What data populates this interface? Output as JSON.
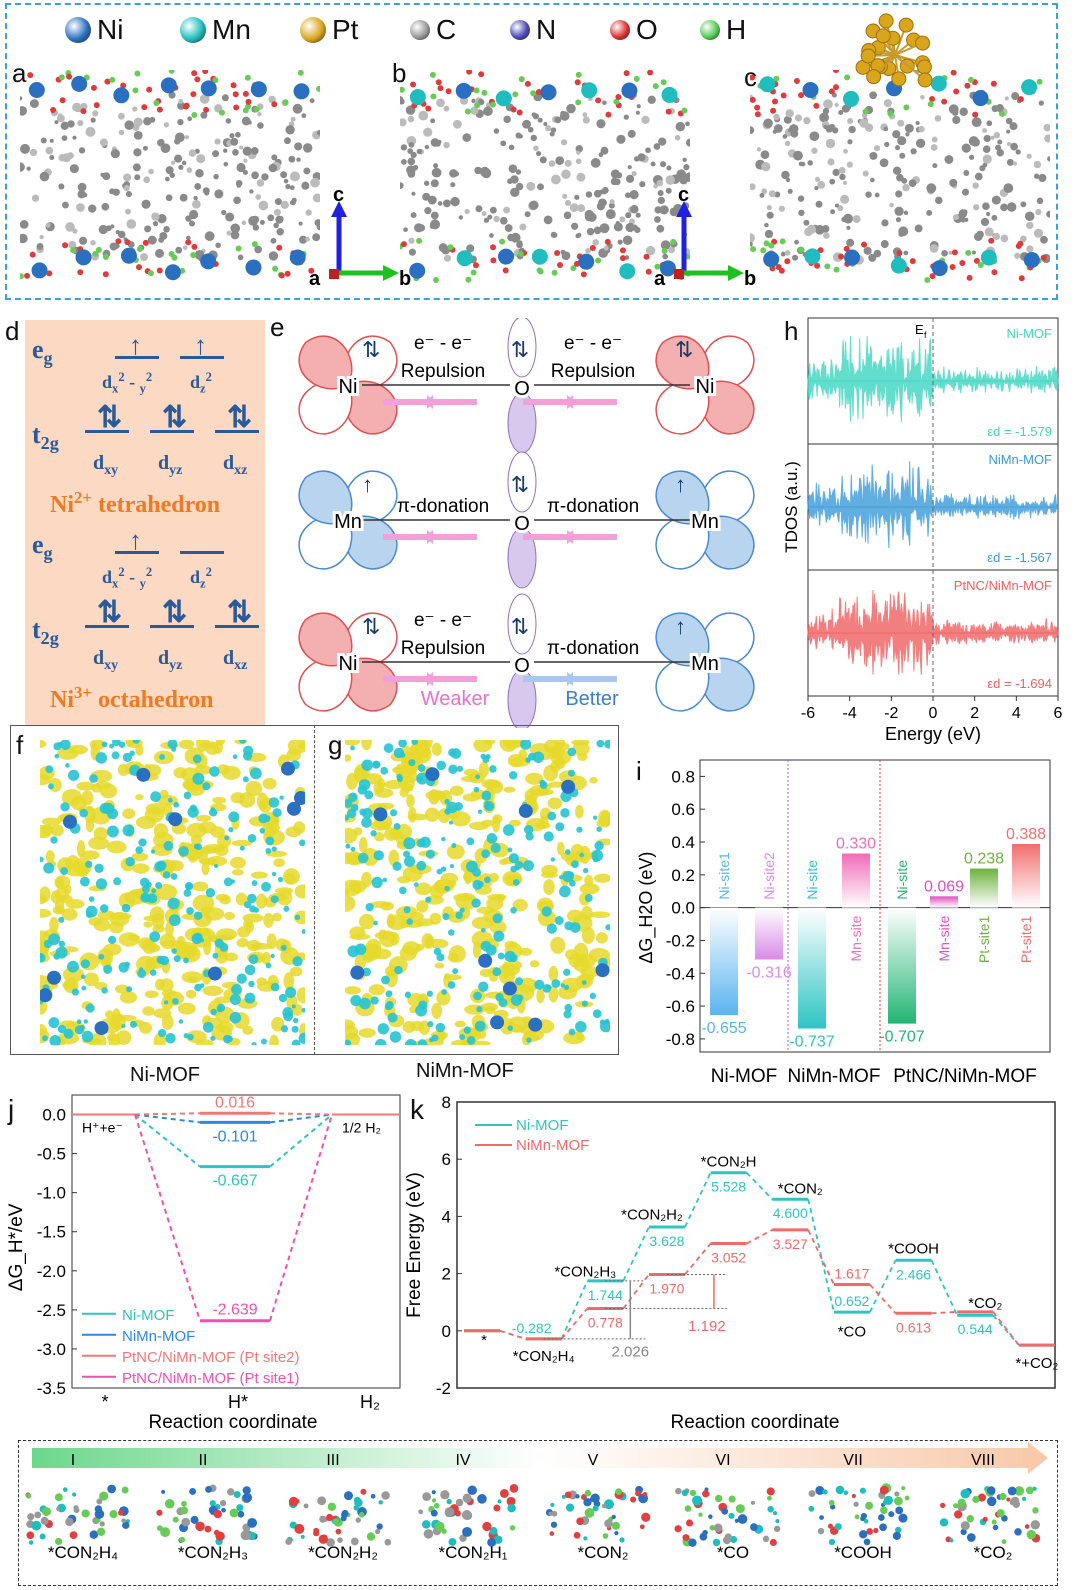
{
  "legend": {
    "items": [
      {
        "label": "Ni",
        "color": "#2a6fc0"
      },
      {
        "label": "Mn",
        "color": "#1fbdbd"
      },
      {
        "label": "Pt",
        "color": "#d9a51a"
      },
      {
        "label": "C",
        "color": "#9a9a9a"
      },
      {
        "label": "N",
        "color": "#4a4ab8"
      },
      {
        "label": "O",
        "color": "#e03030"
      },
      {
        "label": "H",
        "color": "#55cc55"
      }
    ]
  },
  "panels": {
    "a": "a",
    "b": "b",
    "c": "c",
    "d": "d",
    "e": "e",
    "f": "f",
    "g": "g",
    "h": "h",
    "i": "i",
    "j": "j",
    "k": "k"
  },
  "axes_triad": {
    "c": "c",
    "a": "a",
    "b": "b"
  },
  "panel_d": {
    "eg": "e",
    "eg_sub": "g",
    "t2g": "t",
    "t2g_sub": "2g",
    "orb_x2y2": "d",
    "orb_x2y2_sub": "x",
    "orb_x2y2_sup": "2",
    "orb_x2y2_mid": " - ",
    "orb_y_sub": "y",
    "orb_y_sup": "2",
    "orb_z2": "d",
    "orb_z2_sub": "z",
    "orb_z2_sup": "2",
    "orb_xy": "d",
    "orb_xy_sub": "xy",
    "orb_yz": "d",
    "orb_yz_sub": "yz",
    "orb_xz": "d",
    "orb_xz_sub": "xz",
    "title1": "Ni",
    "title1_sup": "2+",
    "title1_rest": " tetrahedron",
    "title2": "Ni",
    "title2_sup": "3+",
    "title2_rest": " octahedron",
    "spin_up": "↑",
    "spin_pair": "⇅"
  },
  "panel_e": {
    "rows": [
      {
        "left": "Ni",
        "center": "O",
        "right": "Ni",
        "l1": "e⁻ - e⁻",
        "l2": "Repulsion",
        "r1": "e⁻ - e⁻",
        "r2": "Repulsion",
        "lb": "",
        "rb": ""
      },
      {
        "left": "Mn",
        "center": "O",
        "right": "Mn",
        "l1": "",
        "l2": "π-donation",
        "r1": "",
        "r2": "π-donation",
        "lb": "",
        "rb": ""
      },
      {
        "left": "Ni",
        "center": "O",
        "right": "Mn",
        "l1": "e⁻ - e⁻",
        "l2": "Repulsion",
        "r1": "",
        "r2": "π-donation",
        "lb": "Weaker",
        "rb": "Better"
      }
    ]
  },
  "panel_h": {
    "ef": "E",
    "ef_sub": "f",
    "ylabel": "TDOS (a.u.)",
    "xlabel": "Energy (eV)",
    "xticks": [
      "-6",
      "-4",
      "-2",
      "0",
      "2",
      "4",
      "6"
    ],
    "series": [
      {
        "name": "Ni-MOF",
        "ed": "εd = -1.579",
        "color": "#3ed6c0"
      },
      {
        "name": "NiMn-MOF",
        "ed": "εd = -1.567",
        "color": "#3a9ad9"
      },
      {
        "name": "PtNC/NiMn-MOF",
        "ed": "εd = -1.694",
        "color": "#f06060"
      }
    ]
  },
  "panel_fg": {
    "f_caption": "Ni-MOF",
    "g_caption": "NiMn-MOF"
  },
  "chart_data": [
    {
      "id": "i",
      "type": "bar",
      "ylabel": "ΔG_H2O (eV)",
      "ylim": [
        -0.88,
        0.9
      ],
      "yticks": [
        "-0.8",
        "-0.6",
        "-0.4",
        "-0.2",
        "0.0",
        "0.2",
        "0.4",
        "0.6",
        "0.8"
      ],
      "ytick_values": [
        -0.8,
        -0.6,
        -0.4,
        -0.2,
        0,
        0.2,
        0.4,
        0.6,
        0.8
      ],
      "groups": [
        "Ni-MOF",
        "NiMn-MOF",
        "PtNC/NiMn-MOF"
      ],
      "bars": [
        {
          "group": 0,
          "site": "Ni-site1",
          "value": -0.655,
          "label": "-0.655",
          "color": "#5ab4f0"
        },
        {
          "group": 0,
          "site": "Ni-site2",
          "value": -0.316,
          "label": "-0.316",
          "color": "#d98ae8"
        },
        {
          "group": 1,
          "site": "Ni-site",
          "value": -0.737,
          "label": "-0.737",
          "color": "#2ec4c4"
        },
        {
          "group": 1,
          "site": "Mn-site",
          "value": 0.33,
          "label": "0.330",
          "color": "#f06bb8"
        },
        {
          "group": 2,
          "site": "Ni-site",
          "value": -0.707,
          "label": "-0.707",
          "color": "#22b573"
        },
        {
          "group": 2,
          "site": "Mn-site",
          "value": 0.069,
          "label": "0.069",
          "color": "#e050c0"
        },
        {
          "group": 2,
          "site": "Pt-site1",
          "value": 0.238,
          "label": "0.238",
          "color": "#6db33f"
        },
        {
          "group": 2,
          "site": "Pt-site1",
          "value": 0.388,
          "label": "0.388",
          "color": "#f26d6d"
        }
      ]
    },
    {
      "id": "j",
      "type": "line",
      "ylabel": "ΔG_H*/eV",
      "xlabel": "Reaction coordinate",
      "ylim": [
        -3.5,
        0.25
      ],
      "yticks": [
        "0.0",
        "-0.5",
        "-1.0",
        "-1.5",
        "-2.0",
        "-2.5",
        "-3.0",
        "-3.5"
      ],
      "ytick_values": [
        0,
        -0.5,
        -1,
        -1.5,
        -2,
        -2.5,
        -3,
        -3.5
      ],
      "categories": [
        "*",
        "H*",
        "H₂"
      ],
      "start_label": "H⁺+e⁻",
      "end_label": "1/2 H₂",
      "series": [
        {
          "name": "Ni-MOF",
          "value": -0.667,
          "label": "-0.667",
          "color": "#2ec4c4"
        },
        {
          "name": "NiMn-MOF",
          "value": -0.101,
          "label": "-0.101",
          "color": "#2a8ae0"
        },
        {
          "name": "PtNC/NiMn-MOF (Pt site2)",
          "value": 0.016,
          "label": "0.016",
          "color": "#f07878"
        },
        {
          "name": "PtNC/NiMn-MOF (Pt site1)",
          "value": -2.639,
          "label": "-2.639",
          "color": "#f050b0"
        }
      ]
    },
    {
      "id": "k",
      "type": "line",
      "ylabel": "Free Energy (eV)",
      "xlabel": "Reaction coordinate",
      "ylim": [
        -2,
        8
      ],
      "yticks": [
        "-2",
        "0",
        "2",
        "4",
        "6",
        "8"
      ],
      "ytick_values": [
        -2,
        0,
        2,
        4,
        6,
        8
      ],
      "states": [
        "*",
        "*CON₂H₄",
        "*CON₂H₃",
        "*CON₂H₂",
        "*CON₂H",
        "*CON₂",
        "*CO",
        "*COOH",
        "*CO₂",
        "*+CO₂"
      ],
      "series": [
        {
          "name": "Ni-MOF",
          "color": "#2ec4c4",
          "values": [
            0,
            -0.282,
            1.744,
            3.628,
            5.528,
            4.6,
            0.652,
            2.466,
            0.544,
            -0.5
          ],
          "labels": [
            "",
            "-0.282",
            "1.744",
            "3.628",
            "5.528",
            "4.600",
            "0.652",
            "2.466",
            "0.544",
            ""
          ]
        },
        {
          "name": "NiMn-MOF",
          "color": "#f06a6a",
          "values": [
            0,
            -0.282,
            0.778,
            1.97,
            3.052,
            3.527,
            1.617,
            0.613,
            0.66,
            -0.5
          ],
          "labels": [
            "",
            "",
            "0.778",
            "1.970",
            "3.052",
            "3.527",
            "1.617",
            "0.613",
            "",
            ""
          ]
        }
      ],
      "annotations": [
        {
          "text": "2.026",
          "color": "#888888"
        },
        {
          "text": "1.192",
          "color": "#f06a6a"
        }
      ]
    }
  ],
  "strip": {
    "steps": [
      {
        "num": "I",
        "species": "*CON₂H₄"
      },
      {
        "num": "II",
        "species": "*CON₂H₃"
      },
      {
        "num": "III",
        "species": "*CON₂H₂"
      },
      {
        "num": "IV",
        "species": "*CON₂H₁"
      },
      {
        "num": "V",
        "species": "*CON₂"
      },
      {
        "num": "VI",
        "species": "*CO"
      },
      {
        "num": "VII",
        "species": "*COOH"
      },
      {
        "num": "VIII",
        "species": "*CO₂"
      }
    ]
  }
}
